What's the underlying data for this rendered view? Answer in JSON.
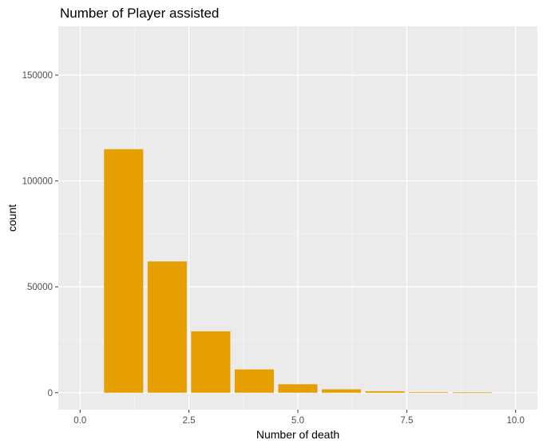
{
  "chart_data": {
    "type": "bar",
    "title": "Number of Player assisted",
    "xlabel": "Number of death",
    "ylabel": "count",
    "x": [
      1,
      2,
      3,
      4,
      5,
      6,
      7,
      8,
      9
    ],
    "values": [
      115000,
      62000,
      29000,
      11000,
      4000,
      1600,
      700,
      300,
      150
    ],
    "xlim": [
      -0.5,
      10.5
    ],
    "ylim": [
      -8000,
      173000
    ],
    "xticks": [
      0,
      2.5,
      5,
      7.5,
      10
    ],
    "xtick_labels": [
      "0.0",
      "2.5",
      "5.0",
      "7.5",
      "10.0"
    ],
    "yticks": [
      0,
      50000,
      100000,
      150000
    ],
    "ytick_labels": [
      "0",
      "50000",
      "100000",
      "150000"
    ],
    "bar_color": "#E69F00",
    "panel_color": "#EBEBEB",
    "grid": true,
    "legend": "none"
  }
}
